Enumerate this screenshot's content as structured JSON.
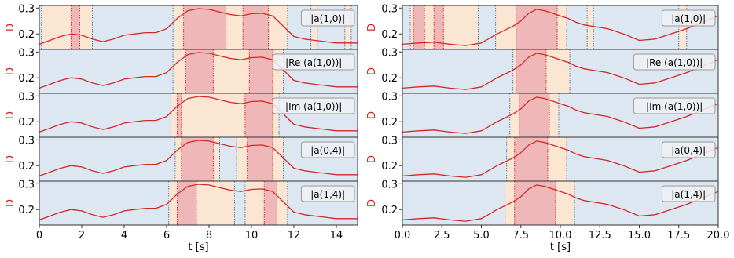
{
  "colors": {
    "curve": "#d62728",
    "bg_blue": "#dce7f1",
    "bg_orange": "#fbe5d3",
    "bg_red": "#efb7b8",
    "axis_label": "#d62728",
    "blue_line": "#4f7fb0"
  },
  "chart_data": [
    {
      "type": "line",
      "xlabel": "t [s]",
      "ylabel": "D",
      "xlim": [
        0,
        15
      ],
      "ylim": [
        0.14,
        0.31
      ],
      "xticks": [
        0,
        2,
        4,
        6,
        8,
        10,
        12,
        14
      ],
      "xtick_labels": [
        "0",
        "2",
        "4",
        "6",
        "8",
        "10",
        "12",
        "14"
      ],
      "yticks": [
        0.2,
        0.3
      ],
      "ytick_labels": [
        "0.2",
        "0.3"
      ],
      "grid": false,
      "legend": "top-right box per panel",
      "curve_x": [
        0,
        0.5,
        1,
        1.5,
        2,
        2.5,
        3,
        3.5,
        4,
        4.5,
        5,
        5.5,
        6,
        6.5,
        7,
        7.5,
        8,
        8.5,
        9,
        9.5,
        10,
        10.5,
        11,
        11.5,
        12,
        12.5,
        13,
        13.5,
        14,
        14.5,
        15
      ],
      "curve_y": [
        0.16,
        0.175,
        0.19,
        0.2,
        0.195,
        0.18,
        0.17,
        0.18,
        0.195,
        0.2,
        0.205,
        0.205,
        0.22,
        0.26,
        0.29,
        0.298,
        0.295,
        0.285,
        0.275,
        0.27,
        0.278,
        0.28,
        0.27,
        0.23,
        0.19,
        0.18,
        0.175,
        0.17,
        0.165,
        0.165,
        0.165
      ],
      "panels": [
        {
          "label": "|a(1,0)|",
          "orange": [
            [
              0.1,
              1.5
            ],
            [
              1.9,
              2.5
            ],
            [
              6.3,
              11.7
            ],
            [
              12.8,
              13.1
            ],
            [
              14.4,
              14.7
            ]
          ],
          "red": [
            [
              1.5,
              1.9
            ],
            [
              6.8,
              8.8
            ],
            [
              9.6,
              10.8
            ]
          ]
        },
        {
          "label": "|Re (a(1,0))|",
          "orange": [
            [
              6.3,
              11.5
            ]
          ],
          "red": [
            [
              6.9,
              8.2
            ],
            [
              9.9,
              11.0
            ]
          ]
        },
        {
          "label": "|Im (a(1,0))|",
          "orange": [
            [
              6.2,
              11.3
            ]
          ],
          "red": [
            [
              6.5,
              6.7
            ],
            [
              9.7,
              11.0
            ]
          ]
        },
        {
          "label": "|a(0,4)|",
          "orange": [
            [
              6.4,
              8.5
            ],
            [
              9.3,
              11.5
            ]
          ],
          "red": [
            [
              6.7,
              8.2
            ],
            [
              9.8,
              11.0
            ]
          ]
        },
        {
          "label": "|a(1,4)|",
          "orange": [
            [
              6.1,
              9.2
            ],
            [
              9.7,
              11.7
            ]
          ],
          "red": [
            [
              6.5,
              7.4
            ],
            [
              10.6,
              11.2
            ]
          ]
        }
      ]
    },
    {
      "type": "line",
      "xlabel": "t [s]",
      "ylabel": "D",
      "xlim": [
        0,
        20
      ],
      "ylim": [
        0.14,
        0.31
      ],
      "xticks": [
        0,
        2.5,
        5,
        7.5,
        10,
        12.5,
        15,
        17.5,
        20
      ],
      "xtick_labels": [
        "0.0",
        "2.5",
        "5.0",
        "7.5",
        "10.0",
        "12.5",
        "15.0",
        "17.5",
        "20.0"
      ],
      "yticks": [
        0.2,
        0.3
      ],
      "ytick_labels": [
        "0.2",
        "0.3"
      ],
      "grid": false,
      "legend": "top-right box per panel",
      "curve_x": [
        0,
        1,
        2,
        3,
        4,
        5,
        6,
        7,
        7.5,
        8,
        8.5,
        9,
        9.5,
        10,
        10.5,
        11,
        11.5,
        12,
        13,
        14,
        15,
        16,
        17,
        18,
        19,
        20
      ],
      "curve_y": [
        0.16,
        0.165,
        0.168,
        0.16,
        0.155,
        0.165,
        0.2,
        0.23,
        0.25,
        0.28,
        0.295,
        0.29,
        0.28,
        0.27,
        0.26,
        0.245,
        0.235,
        0.23,
        0.22,
        0.2,
        0.175,
        0.18,
        0.2,
        0.22,
        0.245,
        0.27
      ],
      "panels": [
        {
          "label": "|a(1,0)|",
          "orange": [
            [
              0.5,
              4.8
            ],
            [
              5.9,
              10.4
            ],
            [
              11.7,
              12.1
            ],
            [
              17.5,
              18.0
            ]
          ],
          "red": [
            [
              0.7,
              1.4
            ],
            [
              2.0,
              2.6
            ],
            [
              7.2,
              9.8
            ]
          ]
        },
        {
          "label": "|Re (a(1,0))|",
          "orange": [
            [
              7.0,
              10.6
            ]
          ],
          "red": [
            [
              7.2,
              9.1
            ]
          ]
        },
        {
          "label": "|Im (a(1,0))|",
          "orange": [
            [
              6.8,
              9.9
            ]
          ],
          "red": [
            [
              7.4,
              9.3
            ]
          ]
        },
        {
          "label": "|a(0,4)|",
          "orange": [
            [
              6.6,
              10.4
            ]
          ],
          "red": [
            [
              7.1,
              9.2
            ]
          ]
        },
        {
          "label": "|a(1,4)|",
          "orange": [
            [
              6.5,
              10.9
            ]
          ],
          "red": [
            [
              7.1,
              9.7
            ]
          ]
        }
      ]
    }
  ]
}
